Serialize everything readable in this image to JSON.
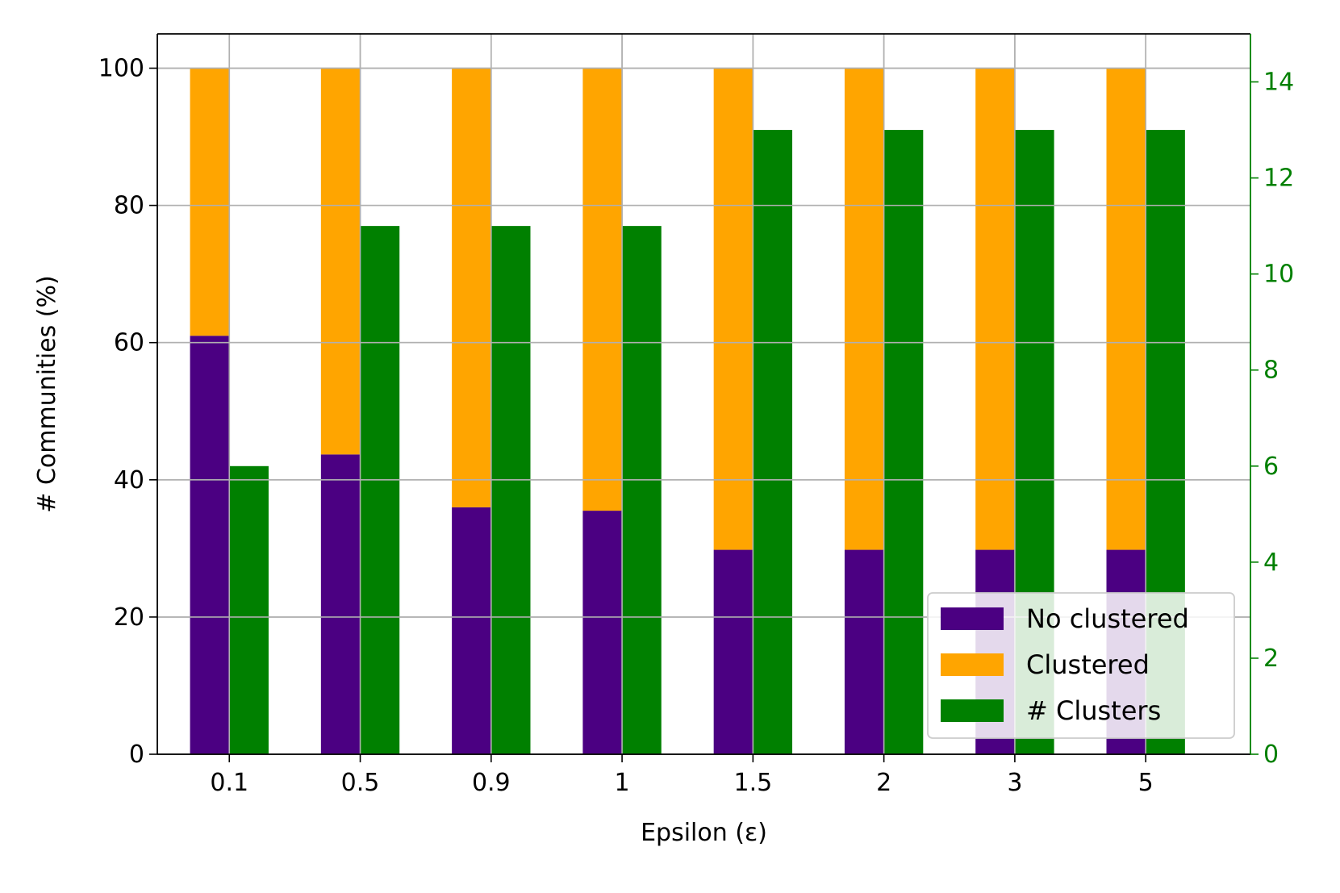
{
  "chart_data": {
    "type": "bar",
    "stacked": true,
    "secondary_axis": true,
    "categories": [
      "0.1",
      "0.5",
      "0.9",
      "1",
      "1.5",
      "2",
      "3",
      "5"
    ],
    "series": [
      {
        "name": "No clustered",
        "axis": "left",
        "stack": "communities",
        "color": "#4b0082",
        "values": [
          61,
          43.7,
          36,
          35.5,
          29.8,
          29.8,
          29.8,
          29.8
        ]
      },
      {
        "name": "Clustered",
        "axis": "left",
        "stack": "communities",
        "color": "#ffa500",
        "values": [
          39,
          56.3,
          64,
          64.5,
          70.2,
          70.2,
          70.2,
          70.2
        ]
      },
      {
        "name": "# Clusters",
        "axis": "right",
        "color": "#008000",
        "values": [
          6,
          11,
          11,
          11,
          13,
          13,
          13,
          13
        ]
      }
    ],
    "xlabel": "Epsilon (ε)",
    "ylabel": "# Communities (%)",
    "ylim": [
      0,
      105
    ],
    "y2lim": [
      0,
      15
    ],
    "yticks": [
      "0",
      "20",
      "40",
      "60",
      "80",
      "100"
    ],
    "y2ticks": [
      "0",
      "2",
      "4",
      "6",
      "8",
      "10",
      "12",
      "14"
    ],
    "grid": true,
    "legend_position": "lower-right",
    "right_axis_color": "#008000"
  }
}
